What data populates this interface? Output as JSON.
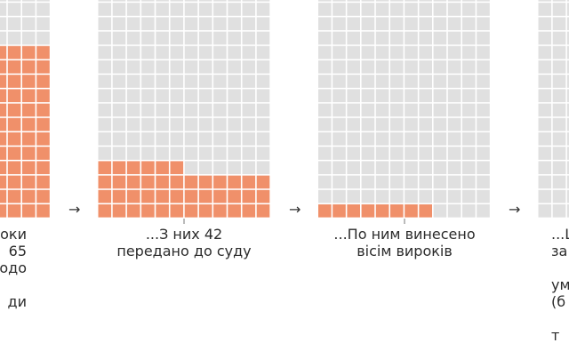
{
  "chart_data": {
    "type": "waffle",
    "grid_columns": 12,
    "colors": {
      "highlight": "#f0906a",
      "base": "#e0e0e0",
      "tick": "#777777"
    },
    "panels": [
      {
        "value": 149,
        "total": 210,
        "caption_lines": [
          "оки",
          "65",
          "щодо",
          "",
          "ди"
        ]
      },
      {
        "value": 42,
        "total": 210,
        "caption_lines": [
          "...З них 42",
          "передано до суду"
        ]
      },
      {
        "value": 8,
        "total": 210,
        "caption_lines": [
          "...По ним винесено",
          "вісім вироків"
        ]
      },
      {
        "value": 0,
        "total": 210,
        "caption_lines": [
          "...L",
          "за",
          "",
          "ум",
          "(б",
          "",
          "т"
        ]
      }
    ],
    "arrows": [
      "→",
      "→",
      "→"
    ]
  }
}
